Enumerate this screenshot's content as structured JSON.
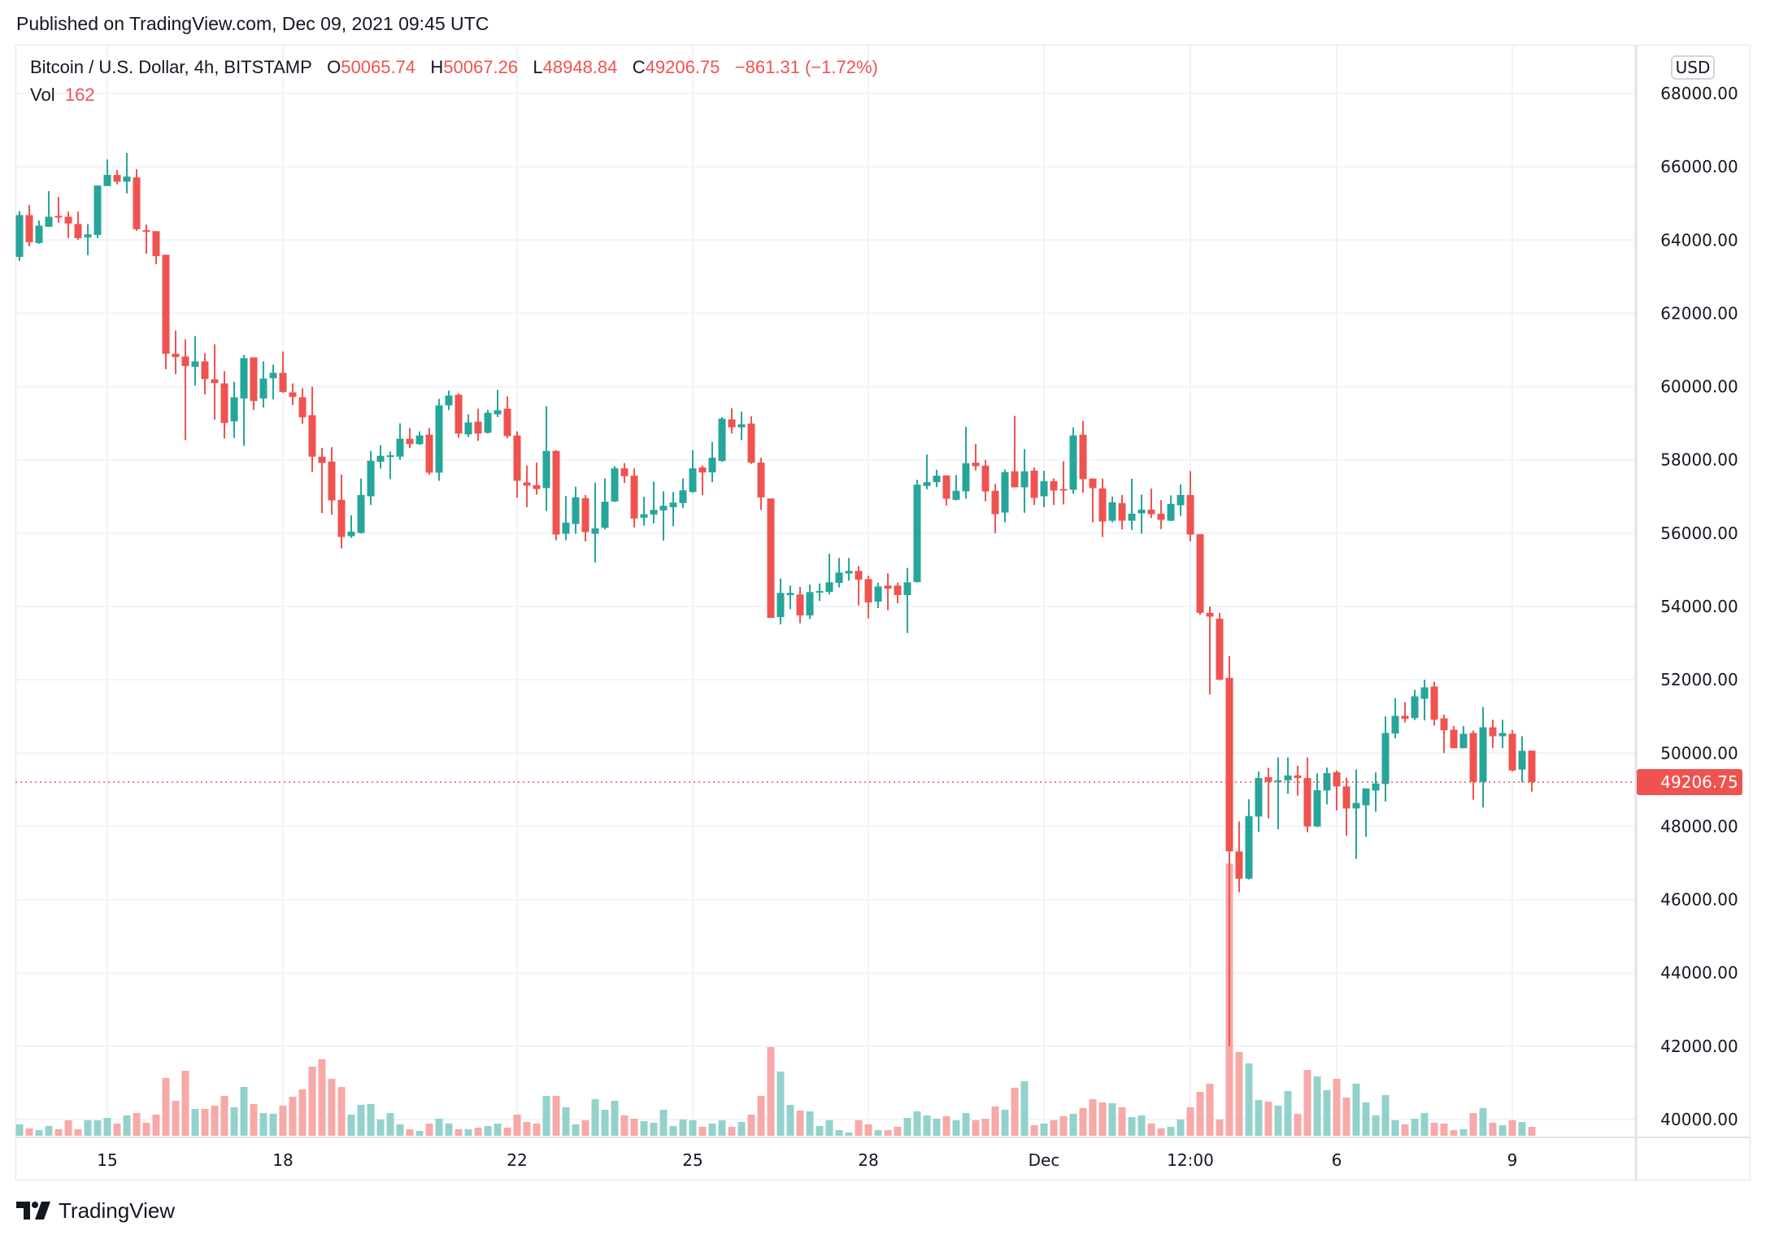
{
  "published": "Published on TradingView.com, Dec 09, 2021 09:45 UTC",
  "legend": {
    "symbol": "Bitcoin / U.S. Dollar, 4h, BITSTAMP",
    "o_label": "O",
    "o_value": "50065.74",
    "h_label": "H",
    "h_value": "50067.26",
    "l_label": "L",
    "l_value": "48948.84",
    "c_label": "C",
    "c_value": "49206.75",
    "change": "−861.31 (−1.72%)",
    "vol_label": "Vol",
    "vol_value": "162"
  },
  "currency": "USD",
  "brand": "TradingView",
  "colors": {
    "up": "#26a69a",
    "down": "#ef5350",
    "up_volume": "#93d2cc",
    "down_volume": "#f7a9a7",
    "grid": "#f0f3fa"
  },
  "chart_data": {
    "type": "candlestick",
    "symbol": "BTCUSD",
    "interval": "4h",
    "ylim": [
      40000,
      68000
    ],
    "y_ticks": [
      "68000.00",
      "66000.00",
      "64000.00",
      "62000.00",
      "60000.00",
      "58000.00",
      "56000.00",
      "54000.00",
      "52000.00",
      "50000.00",
      "48000.00",
      "46000.00",
      "44000.00",
      "42000.00",
      "40000.00"
    ],
    "last_price": "49206.75",
    "x_ticks": [
      {
        "label": "15",
        "time": "2021-11-15 00:00"
      },
      {
        "label": "18",
        "time": "2021-11-18 00:00"
      },
      {
        "label": "22",
        "time": "2021-11-22 00:00"
      },
      {
        "label": "25",
        "time": "2021-11-25 00:00"
      },
      {
        "label": "28",
        "time": "2021-11-28 00:00"
      },
      {
        "label": "Dec",
        "time": "2021-12-01 00:00"
      },
      {
        "label": "12:00",
        "time": "2021-12-03 12:00"
      },
      {
        "label": "6",
        "time": "2021-12-06 00:00"
      },
      {
        "label": "9",
        "time": "2021-12-09 00:00"
      }
    ],
    "first_bar_time": "2021-11-13 12:00",
    "columns": [
      "open",
      "high",
      "low",
      "close",
      "volume"
    ],
    "candles": [
      [
        63541,
        64793,
        63430,
        64681,
        206
      ],
      [
        64681,
        64956,
        63830,
        63941,
        133
      ],
      [
        63919,
        64533,
        63900,
        64393,
        103
      ],
      [
        64363,
        65333,
        64363,
        64637,
        177
      ],
      [
        64660,
        65178,
        64474,
        64615,
        118
      ],
      [
        64637,
        64778,
        64052,
        64452,
        280
      ],
      [
        64437,
        64778,
        64007,
        64052,
        118
      ],
      [
        64074,
        64437,
        63585,
        64156,
        280
      ],
      [
        64141,
        65489,
        64052,
        65489,
        280
      ],
      [
        65474,
        66200,
        65474,
        65778,
        324
      ],
      [
        65778,
        65911,
        65519,
        65593,
        221
      ],
      [
        65593,
        66378,
        65274,
        65733,
        368
      ],
      [
        65711,
        65933,
        64252,
        64296,
        412
      ],
      [
        64270,
        64422,
        63630,
        64230,
        236
      ],
      [
        64244,
        64244,
        63341,
        63563,
        383
      ],
      [
        63600,
        63600,
        60474,
        60896,
        1046
      ],
      [
        60896,
        61533,
        60341,
        60807,
        633
      ],
      [
        60822,
        61289,
        58541,
        60563,
        1178
      ],
      [
        60541,
        61378,
        60030,
        60689,
        486
      ],
      [
        60689,
        60911,
        59785,
        60207,
        486
      ],
      [
        60200,
        61156,
        59096,
        60096,
        545
      ],
      [
        60089,
        60422,
        58585,
        59007,
        722
      ],
      [
        59052,
        60133,
        58600,
        59711,
        516
      ],
      [
        59674,
        60867,
        58385,
        60778,
        884
      ],
      [
        60800,
        60800,
        59363,
        59607,
        574
      ],
      [
        59674,
        60689,
        59430,
        60222,
        412
      ],
      [
        60230,
        60600,
        59652,
        60378,
        398
      ],
      [
        60378,
        60956,
        59830,
        59852,
        545
      ],
      [
        59844,
        60089,
        59496,
        59719,
        707
      ],
      [
        59711,
        59956,
        58985,
        59163,
        840
      ],
      [
        59222,
        60000,
        57674,
        58089,
        1252
      ],
      [
        58089,
        58326,
        56548,
        57918,
        1385
      ],
      [
        57956,
        58348,
        56504,
        56896,
        1031
      ],
      [
        56911,
        57600,
        55585,
        55896,
        884
      ],
      [
        55919,
        56489,
        55874,
        56044,
        383
      ],
      [
        56007,
        57489,
        55990,
        57044,
        560
      ],
      [
        57007,
        58244,
        56770,
        57978,
        574
      ],
      [
        57948,
        58400,
        57763,
        58111,
        295
      ],
      [
        58096,
        58230,
        57474,
        58126,
        412
      ],
      [
        58089,
        59000,
        58000,
        58578,
        206
      ],
      [
        58578,
        58867,
        58326,
        58430,
        118
      ],
      [
        58430,
        58778,
        58415,
        58667,
        88
      ],
      [
        58689,
        58867,
        57600,
        57652,
        221
      ],
      [
        57652,
        59667,
        57430,
        59489,
        309
      ],
      [
        59489,
        59889,
        59359,
        59756,
        221
      ],
      [
        59778,
        59822,
        58607,
        58719,
        118
      ],
      [
        58696,
        59244,
        58622,
        59022,
        118
      ],
      [
        59044,
        59400,
        58519,
        58719,
        147
      ],
      [
        58741,
        59370,
        58719,
        59289,
        177
      ],
      [
        59244,
        59911,
        59170,
        59356,
        221
      ],
      [
        59400,
        59733,
        58593,
        58652,
        147
      ],
      [
        58667,
        58778,
        56970,
        57430,
        383
      ],
      [
        57385,
        57844,
        56711,
        57296,
        250
      ],
      [
        57311,
        57926,
        57052,
        57207,
        221
      ],
      [
        57230,
        59467,
        56607,
        58244,
        722
      ],
      [
        58244,
        58267,
        55807,
        55963,
        722
      ],
      [
        55985,
        57015,
        55807,
        56289,
        516
      ],
      [
        56252,
        57267,
        55985,
        56978,
        206
      ],
      [
        56956,
        57044,
        55774,
        56030,
        280
      ],
      [
        55985,
        57378,
        55200,
        56133,
        663
      ],
      [
        56148,
        57496,
        56104,
        56859,
        471
      ],
      [
        56867,
        57830,
        56850,
        57770,
        633
      ],
      [
        57770,
        57911,
        57370,
        57556,
        368
      ],
      [
        57570,
        57770,
        56156,
        56400,
        309
      ],
      [
        56422,
        56993,
        56207,
        56519,
        265
      ],
      [
        56511,
        57407,
        56267,
        56637,
        236
      ],
      [
        56622,
        57141,
        55800,
        56748,
        471
      ],
      [
        56711,
        57126,
        56193,
        56837,
        177
      ],
      [
        56822,
        57496,
        56689,
        57170,
        295
      ],
      [
        57126,
        58267,
        57096,
        57770,
        280
      ],
      [
        57793,
        57850,
        57037,
        57659,
        162
      ],
      [
        57659,
        58489,
        57393,
        58059,
        221
      ],
      [
        57970,
        59170,
        57950,
        59126,
        280
      ],
      [
        59104,
        59407,
        58719,
        58889,
        162
      ],
      [
        58889,
        59318,
        58540,
        58970,
        250
      ],
      [
        58993,
        59193,
        57890,
        57926,
        383
      ],
      [
        57926,
        58059,
        56637,
        56978,
        722
      ],
      [
        56948,
        56948,
        53689,
        53689,
        1606
      ],
      [
        53711,
        54763,
        53511,
        54370,
        1164
      ],
      [
        54311,
        54570,
        53926,
        54370,
        560
      ],
      [
        54326,
        54533,
        53541,
        53756,
        457
      ],
      [
        53756,
        54600,
        53652,
        54393,
        442
      ],
      [
        54378,
        54630,
        54148,
        54422,
        177
      ],
      [
        54400,
        55437,
        54330,
        54659,
        280
      ],
      [
        54644,
        55326,
        54519,
        54926,
        103
      ],
      [
        54900,
        55326,
        54704,
        54970,
        59
      ],
      [
        54970,
        55104,
        54030,
        54733,
        280
      ],
      [
        54748,
        54837,
        53674,
        54111,
        206
      ],
      [
        54133,
        54652,
        53956,
        54548,
        103
      ],
      [
        54570,
        54904,
        53896,
        54489,
        103
      ],
      [
        54570,
        54652,
        54089,
        54311,
        162
      ],
      [
        54311,
        55052,
        53274,
        54659,
        324
      ],
      [
        54667,
        57459,
        54650,
        57326,
        442
      ],
      [
        57289,
        58148,
        57200,
        57393,
        368
      ],
      [
        57393,
        57733,
        57259,
        57570,
        309
      ],
      [
        57578,
        57578,
        56756,
        56941,
        354
      ],
      [
        56911,
        57585,
        56896,
        57156,
        280
      ],
      [
        57141,
        58904,
        56941,
        57911,
        412
      ],
      [
        57926,
        58437,
        57711,
        57830,
        280
      ],
      [
        57844,
        58000,
        56867,
        57141,
        309
      ],
      [
        57156,
        57341,
        56000,
        56519,
        530
      ],
      [
        56563,
        57741,
        56296,
        57667,
        471
      ],
      [
        57689,
        59200,
        57252,
        57252,
        869
      ],
      [
        57252,
        58296,
        56556,
        57689,
        987
      ],
      [
        57711,
        57793,
        56770,
        56963,
        191
      ],
      [
        57007,
        57704,
        56711,
        57422,
        221
      ],
      [
        57422,
        57496,
        56770,
        57163,
        280
      ],
      [
        57207,
        57963,
        56785,
        57185,
        354
      ],
      [
        57185,
        58889,
        57074,
        58667,
        398
      ],
      [
        58689,
        59067,
        57104,
        57474,
        501
      ],
      [
        57489,
        57500,
        56296,
        57230,
        663
      ],
      [
        57222,
        57489,
        55896,
        56319,
        604
      ],
      [
        56341,
        57000,
        56296,
        56844,
        589
      ],
      [
        56822,
        57044,
        56104,
        56341,
        516
      ],
      [
        56341,
        57489,
        56089,
        56533,
        339
      ],
      [
        56541,
        57052,
        55985,
        56644,
        368
      ],
      [
        56644,
        57215,
        56415,
        56519,
        221
      ],
      [
        56533,
        56904,
        56111,
        56363,
        133
      ],
      [
        56341,
        57030,
        56330,
        56800,
        162
      ],
      [
        56763,
        57333,
        56474,
        57044,
        295
      ],
      [
        57044,
        57696,
        55778,
        55963,
        516
      ],
      [
        55973,
        55973,
        53770,
        53826,
        795
      ],
      [
        53826,
        54000,
        51600,
        53723,
        943
      ],
      [
        53667,
        53826,
        51990,
        52004,
        295
      ],
      [
        52052,
        52646,
        42000,
        47316,
        4930
      ],
      [
        47316,
        48131,
        46200,
        46572,
        1517
      ],
      [
        46572,
        48738,
        46550,
        48282,
        1311
      ],
      [
        48266,
        49500,
        47850,
        49319,
        648
      ],
      [
        49343,
        49596,
        48218,
        49216,
        619
      ],
      [
        49216,
        49881,
        47916,
        49256,
        545
      ],
      [
        49256,
        49881,
        48889,
        49390,
        810
      ],
      [
        49390,
        49652,
        48837,
        49320,
        398
      ],
      [
        49320,
        49881,
        47842,
        47997,
        1193
      ],
      [
        47997,
        49445,
        47980,
        48987,
        1075
      ],
      [
        48979,
        49604,
        48600,
        49455,
        825
      ],
      [
        49478,
        49525,
        48432,
        49090,
        1031
      ],
      [
        49090,
        49327,
        47747,
        48488,
        692
      ],
      [
        48488,
        49550,
        47115,
        48638,
        943
      ],
      [
        48575,
        49035,
        47716,
        49035,
        604
      ],
      [
        48979,
        49470,
        48400,
        49170,
        368
      ],
      [
        49156,
        51000,
        48680,
        50548,
        737
      ],
      [
        50533,
        51500,
        50400,
        51015,
        280
      ],
      [
        51015,
        51393,
        50830,
        50933,
        206
      ],
      [
        50955,
        51726,
        50900,
        51548,
        309
      ],
      [
        51481,
        52000,
        50890,
        51793,
        412
      ],
      [
        51815,
        51948,
        50750,
        50911,
        236
      ],
      [
        50948,
        51052,
        50000,
        50622,
        221
      ],
      [
        50637,
        50740,
        50133,
        50133,
        103
      ],
      [
        50133,
        50740,
        50133,
        50526,
        118
      ],
      [
        50548,
        50615,
        48726,
        49215,
        412
      ],
      [
        49215,
        51259,
        48515,
        50704,
        501
      ],
      [
        50704,
        50910,
        50133,
        50460,
        236
      ],
      [
        50460,
        50910,
        50133,
        50548,
        191
      ],
      [
        50526,
        50630,
        49496,
        49526,
        280
      ],
      [
        49548,
        50460,
        49200,
        50060,
        250
      ],
      [
        50065.74,
        50067.26,
        48948.84,
        49206.75,
        162
      ]
    ]
  }
}
